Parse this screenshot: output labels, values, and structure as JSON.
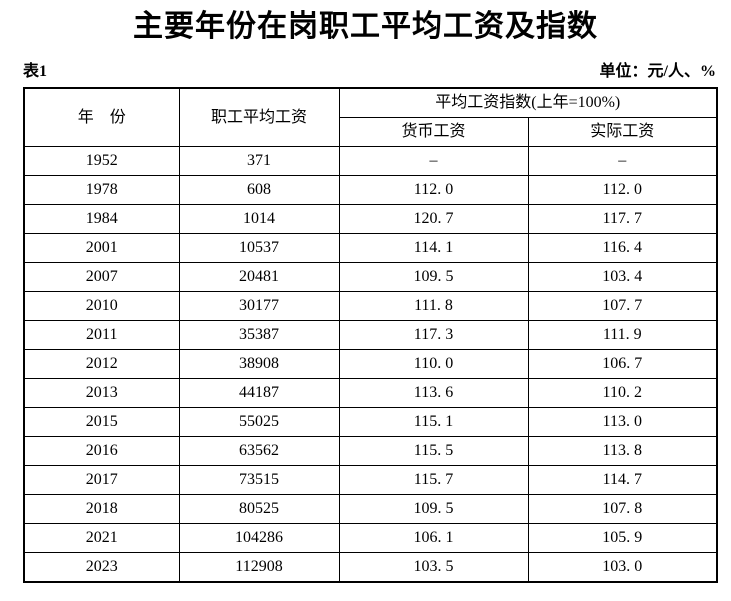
{
  "title": "主要年份在岗职工平均工资及指数",
  "table_label": "表1",
  "unit_label": "单位：元/人、%",
  "colors": {
    "text": "#000000",
    "border": "#000000",
    "background": "#ffffff"
  },
  "table": {
    "headers": {
      "year": "年　份",
      "avg_wage": "职工平均工资",
      "index_group": "平均工资指数(上年=100%)",
      "money_wage": "货币工资",
      "real_wage": "实际工资"
    },
    "rows": [
      [
        "1952",
        "371",
        "–",
        "–"
      ],
      [
        "1978",
        "608",
        "112. 0",
        "112. 0"
      ],
      [
        "1984",
        "1014",
        "120. 7",
        "117. 7"
      ],
      [
        "2001",
        "10537",
        "114. 1",
        "116. 4"
      ],
      [
        "2007",
        "20481",
        "109. 5",
        "103. 4"
      ],
      [
        "2010",
        "30177",
        "111. 8",
        "107. 7"
      ],
      [
        "2011",
        "35387",
        "117. 3",
        "111. 9"
      ],
      [
        "2012",
        "38908",
        "110. 0",
        "106. 7"
      ],
      [
        "2013",
        "44187",
        "113. 6",
        "110. 2"
      ],
      [
        "2015",
        "55025",
        "115. 1",
        "113. 0"
      ],
      [
        "2016",
        "63562",
        "115. 5",
        "113. 8"
      ],
      [
        "2017",
        "73515",
        "115. 7",
        "114. 7"
      ],
      [
        "2018",
        "80525",
        "109. 5",
        "107. 8"
      ],
      [
        "2021",
        "104286",
        "106. 1",
        "105. 9"
      ],
      [
        "2023",
        "112908",
        "103. 5",
        "103. 0"
      ]
    ]
  },
  "chart_data": {
    "type": "table",
    "title": "主要年份在岗职工平均工资及指数",
    "columns": [
      "年份",
      "职工平均工资",
      "平均工资指数(上年=100%) 货币工资",
      "平均工资指数(上年=100%) 实际工资"
    ],
    "years": [
      1952,
      1978,
      1984,
      2001,
      2007,
      2010,
      2011,
      2012,
      2013,
      2015,
      2016,
      2017,
      2018,
      2021,
      2023
    ],
    "avg_wage": [
      371,
      608,
      1014,
      10537,
      20481,
      30177,
      35387,
      38908,
      44187,
      55025,
      63562,
      73515,
      80525,
      104286,
      112908
    ],
    "money_wage_index": [
      null,
      112.0,
      120.7,
      114.1,
      109.5,
      111.8,
      117.3,
      110.0,
      113.6,
      115.1,
      115.5,
      115.7,
      109.5,
      106.1,
      103.5
    ],
    "real_wage_index": [
      null,
      112.0,
      117.7,
      116.4,
      103.4,
      107.7,
      111.9,
      106.7,
      110.2,
      113.0,
      113.8,
      114.7,
      107.8,
      105.9,
      103.0
    ]
  }
}
